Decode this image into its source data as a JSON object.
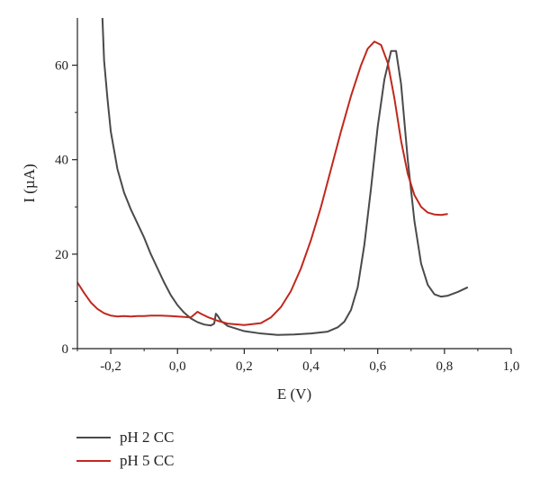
{
  "chart_data": {
    "type": "line",
    "title": "",
    "xlabel": "E (V)",
    "ylabel": "I (µA)",
    "xlim": [
      -0.3,
      1.0
    ],
    "ylim": [
      0,
      70
    ],
    "x_ticks": [
      -0.2,
      0.0,
      0.2,
      0.4,
      0.6,
      0.8,
      1.0
    ],
    "x_tick_labels": [
      "-0,2",
      "0,0",
      "0,2",
      "0,4",
      "0,6",
      "0,8",
      "1,0"
    ],
    "y_ticks": [
      0,
      20,
      40,
      60
    ],
    "y_tick_labels": [
      "0",
      "20",
      "40",
      "60"
    ],
    "grid": false,
    "legend_position": "bottom-left, below plot",
    "series": [
      {
        "name": "pH 2 CC",
        "color": "#4a4a4a",
        "points": [
          [
            -0.225,
            70
          ],
          [
            -0.22,
            61
          ],
          [
            -0.21,
            53
          ],
          [
            -0.2,
            46
          ],
          [
            -0.18,
            38
          ],
          [
            -0.16,
            33
          ],
          [
            -0.14,
            29.5
          ],
          [
            -0.12,
            26.5
          ],
          [
            -0.1,
            23.5
          ],
          [
            -0.08,
            20
          ],
          [
            -0.06,
            17
          ],
          [
            -0.04,
            14
          ],
          [
            -0.02,
            11.3
          ],
          [
            0.0,
            9.2
          ],
          [
            0.02,
            7.6
          ],
          [
            0.04,
            6.4
          ],
          [
            0.06,
            5.6
          ],
          [
            0.08,
            5.1
          ],
          [
            0.1,
            4.9
          ],
          [
            0.11,
            5.3
          ],
          [
            0.115,
            7.4
          ],
          [
            0.12,
            7.0
          ],
          [
            0.13,
            5.9
          ],
          [
            0.15,
            4.8
          ],
          [
            0.2,
            3.7
          ],
          [
            0.25,
            3.2
          ],
          [
            0.3,
            2.9
          ],
          [
            0.35,
            3.0
          ],
          [
            0.4,
            3.2
          ],
          [
            0.45,
            3.6
          ],
          [
            0.48,
            4.5
          ],
          [
            0.5,
            5.7
          ],
          [
            0.52,
            8.2
          ],
          [
            0.54,
            13
          ],
          [
            0.56,
            22
          ],
          [
            0.58,
            34
          ],
          [
            0.6,
            47
          ],
          [
            0.62,
            57
          ],
          [
            0.64,
            63
          ],
          [
            0.655,
            63
          ],
          [
            0.67,
            56
          ],
          [
            0.69,
            40
          ],
          [
            0.71,
            27
          ],
          [
            0.73,
            18
          ],
          [
            0.75,
            13.5
          ],
          [
            0.77,
            11.5
          ],
          [
            0.79,
            11
          ],
          [
            0.81,
            11.2
          ],
          [
            0.84,
            12
          ],
          [
            0.87,
            13
          ]
        ]
      },
      {
        "name": "pH 5 CC",
        "color": "#c0281d",
        "points": [
          [
            -0.3,
            14
          ],
          [
            -0.28,
            11.8
          ],
          [
            -0.26,
            9.8
          ],
          [
            -0.24,
            8.4
          ],
          [
            -0.22,
            7.5
          ],
          [
            -0.2,
            7.0
          ],
          [
            -0.18,
            6.8
          ],
          [
            -0.16,
            6.9
          ],
          [
            -0.14,
            6.8
          ],
          [
            -0.12,
            6.9
          ],
          [
            -0.1,
            6.9
          ],
          [
            -0.08,
            7.0
          ],
          [
            -0.05,
            7.0
          ],
          [
            -0.02,
            6.9
          ],
          [
            0.0,
            6.8
          ],
          [
            0.02,
            6.7
          ],
          [
            0.04,
            6.6
          ],
          [
            0.05,
            7.2
          ],
          [
            0.06,
            7.8
          ],
          [
            0.07,
            7.4
          ],
          [
            0.09,
            6.7
          ],
          [
            0.12,
            5.9
          ],
          [
            0.15,
            5.3
          ],
          [
            0.2,
            5.0
          ],
          [
            0.25,
            5.4
          ],
          [
            0.28,
            6.6
          ],
          [
            0.31,
            8.8
          ],
          [
            0.34,
            12.2
          ],
          [
            0.37,
            17
          ],
          [
            0.4,
            23
          ],
          [
            0.43,
            30
          ],
          [
            0.46,
            38
          ],
          [
            0.49,
            46
          ],
          [
            0.52,
            53.5
          ],
          [
            0.55,
            60
          ],
          [
            0.57,
            63.5
          ],
          [
            0.59,
            65
          ],
          [
            0.61,
            64.3
          ],
          [
            0.63,
            60.5
          ],
          [
            0.65,
            53
          ],
          [
            0.67,
            44
          ],
          [
            0.69,
            37
          ],
          [
            0.71,
            32.5
          ],
          [
            0.73,
            30
          ],
          [
            0.75,
            28.8
          ],
          [
            0.77,
            28.4
          ],
          [
            0.79,
            28.3
          ],
          [
            0.81,
            28.5
          ]
        ]
      }
    ]
  }
}
